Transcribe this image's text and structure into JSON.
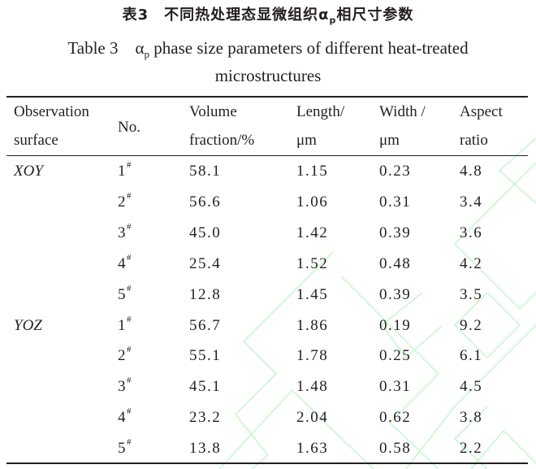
{
  "caption": {
    "chinese_title": "表3　不同热处理态显微组织α",
    "chinese_title_sub": "p",
    "chinese_title_tail": "相尺寸参数",
    "english_prefix": "Table 3　α",
    "english_sub": "p",
    "english_line1_rest": " phase size parameters of different heat-treated",
    "english_line2": "microstructures"
  },
  "table": {
    "headers": [
      {
        "line1": "Observation",
        "line2": "surface"
      },
      {
        "line1": "No.",
        "line2": ""
      },
      {
        "line1": "Volume",
        "line2": "fraction/%"
      },
      {
        "line1": "Length/",
        "line2": "μm"
      },
      {
        "line1": "Width /",
        "line2": "μm"
      },
      {
        "line1": "Aspect",
        "line2": "ratio"
      }
    ],
    "no_mark": "#",
    "rows": [
      {
        "surface": "XOY",
        "no": "1",
        "volume": "58.1",
        "length": "1.15",
        "width": "0.23",
        "aspect": "4.8"
      },
      {
        "surface": "",
        "no": "2",
        "volume": "56.6",
        "length": "1.06",
        "width": "0.31",
        "aspect": "3.4"
      },
      {
        "surface": "",
        "no": "3",
        "volume": "45.0",
        "length": "1.42",
        "width": "0.39",
        "aspect": "3.6"
      },
      {
        "surface": "",
        "no": "4",
        "volume": "25.4",
        "length": "1.52",
        "width": "0.48",
        "aspect": "4.2"
      },
      {
        "surface": "",
        "no": "5",
        "volume": "12.8",
        "length": "1.45",
        "width": "0.39",
        "aspect": "3.5"
      },
      {
        "surface": "YOZ",
        "no": "1",
        "volume": "56.7",
        "length": "1.86",
        "width": "0.19",
        "aspect": "9.2"
      },
      {
        "surface": "",
        "no": "2",
        "volume": "55.1",
        "length": "1.78",
        "width": "0.25",
        "aspect": "6.1"
      },
      {
        "surface": "",
        "no": "3",
        "volume": "45.1",
        "length": "1.48",
        "width": "0.31",
        "aspect": "4.5"
      },
      {
        "surface": "",
        "no": "4",
        "volume": "23.2",
        "length": "2.04",
        "width": "0.62",
        "aspect": "3.8"
      },
      {
        "surface": "",
        "no": "5",
        "volume": "13.8",
        "length": "1.63",
        "width": "0.58",
        "aspect": "2.2"
      }
    ]
  },
  "watermark_color": "#b8f5c0"
}
